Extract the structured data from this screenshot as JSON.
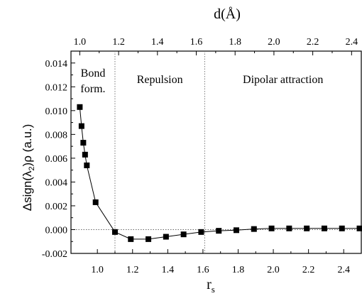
{
  "chart_data": {
    "type": "scatter",
    "top_axis_label": "d(Å)",
    "xlabel": "r",
    "xlabel_subscript": "s",
    "ylabel": "Δsign(λ",
    "ylabel_subscript": "2",
    "ylabel_suffix": ")ρ (a.u.)",
    "xlim": [
      0.85,
      2.5
    ],
    "ylim": [
      -0.002,
      0.015
    ],
    "x_ticks": [
      "1.0",
      "1.2",
      "1.4",
      "1.6",
      "1.8",
      "2.0",
      "2.2",
      "2.4"
    ],
    "x_tick_values": [
      1.0,
      1.2,
      1.4,
      1.6,
      1.8,
      2.0,
      2.2,
      2.4
    ],
    "y_ticks": [
      "-0.002",
      "0.000",
      "0.002",
      "0.004",
      "0.006",
      "0.008",
      "0.010",
      "0.012",
      "0.014"
    ],
    "y_tick_values": [
      -0.002,
      0.0,
      0.002,
      0.004,
      0.006,
      0.008,
      0.01,
      0.012,
      0.014
    ],
    "top_ticks": [
      "1.0",
      "1.2",
      "1.4",
      "1.6",
      "1.8",
      "2.0",
      "2.2",
      "2.4"
    ],
    "top_tick_values": [
      1.0,
      1.2,
      1.4,
      1.6,
      1.8,
      2.0,
      2.2,
      2.4
    ],
    "top_to_bottom_mapping": {
      "top_at_bottom_min": 1.0,
      "bottom_min": 0.9,
      "top_at_bottom_max": 2.45,
      "bottom_max": 2.5
    },
    "region_dividers": [
      1.1,
      1.61
    ],
    "regions": [
      {
        "label_lines": [
          "Bond",
          "form."
        ]
      },
      {
        "label_lines": [
          "Repulsion"
        ]
      },
      {
        "label_lines": [
          "Dipolar attraction"
        ]
      }
    ],
    "zero_line": 0.0,
    "series": [
      {
        "x": [
          0.9,
          0.91,
          0.92,
          0.93,
          0.94,
          0.99,
          1.1,
          1.19,
          1.29,
          1.39,
          1.49,
          1.59,
          1.69,
          1.79,
          1.89,
          1.99,
          2.09,
          2.19,
          2.29,
          2.39,
          2.49
        ],
        "y": [
          0.0103,
          0.0087,
          0.0073,
          0.0063,
          0.0054,
          0.0023,
          -0.0002,
          -0.0008,
          -0.0008,
          -0.0006,
          -0.0004,
          -0.0002,
          -0.0001,
          -5e-05,
          5e-05,
          0.0001,
          0.0001,
          0.0001,
          0.0001,
          0.0001,
          0.0001
        ]
      }
    ]
  }
}
